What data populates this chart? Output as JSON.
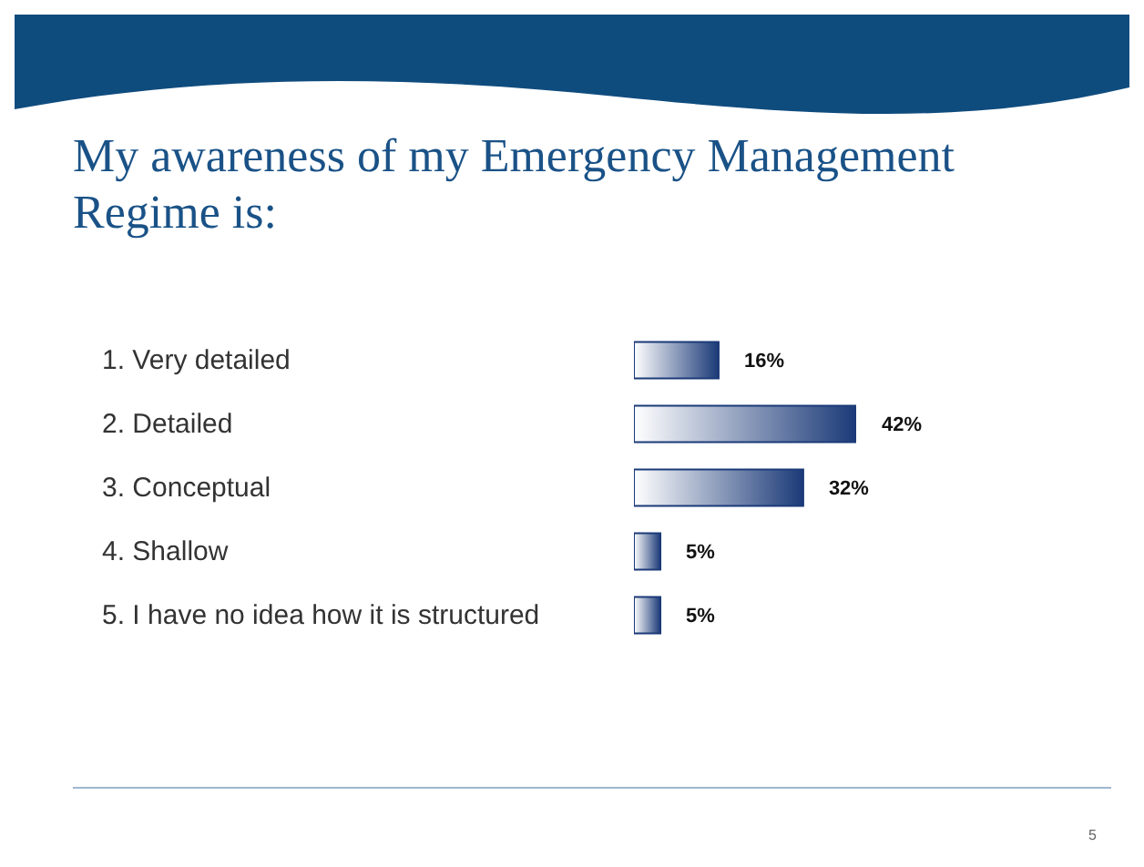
{
  "chart_data": {
    "type": "bar",
    "orientation": "horizontal",
    "title": "My awareness of my Emergency Management Regime is:",
    "categories": [
      "1. Very detailed",
      "2. Detailed",
      "3. Conceptual",
      "4. Shallow",
      "5. I have no idea how it is structured"
    ],
    "values": [
      16,
      42,
      32,
      5,
      5
    ],
    "value_labels": [
      "16%",
      "42%",
      "32%",
      "5%",
      "5%"
    ],
    "color": "#1b3a78",
    "grid": false,
    "legend": false,
    "annotations": [
      "5"
    ]
  }
}
